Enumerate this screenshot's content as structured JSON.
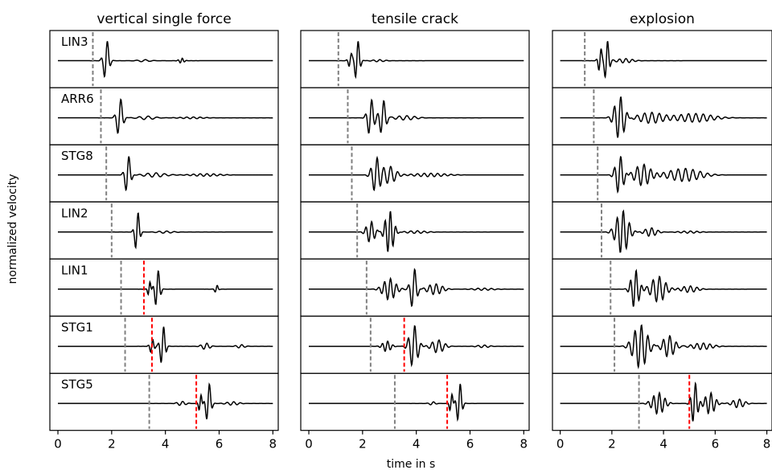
{
  "chart_data": {
    "type": "line",
    "ylabel": "normalized velocity",
    "xlabel": "time in s",
    "xlim": [
      -0.3,
      8.2
    ],
    "xticks": [
      0,
      2,
      4,
      6,
      8
    ],
    "colors": {
      "trace": "#000000",
      "onset_marker": "#808080",
      "secondary_marker": "#ff0000"
    },
    "stations": [
      "LIN3",
      "ARR6",
      "STG8",
      "LIN2",
      "LIN1",
      "STG1",
      "STG5"
    ],
    "columns": [
      {
        "title": "vertical single force",
        "traces": [
          {
            "station": "LIN3",
            "onset": 1.3,
            "secondary": null,
            "wavelets": [
              [
                1.8,
                1.0,
                0.13,
                4.0
              ],
              [
                3.2,
                0.05,
                0.3,
                3.0
              ],
              [
                4.6,
                0.12,
                0.12,
                6.0
              ]
            ]
          },
          {
            "station": "ARR6",
            "onset": 1.6,
            "secondary": null,
            "wavelets": [
              [
                2.3,
                0.95,
                0.14,
                3.8
              ],
              [
                3.3,
                0.08,
                0.4,
                3.0
              ],
              [
                5.0,
                0.04,
                0.6,
                4.0
              ]
            ]
          },
          {
            "station": "STG8",
            "onset": 1.8,
            "secondary": null,
            "wavelets": [
              [
                2.6,
                0.95,
                0.13,
                4.0
              ],
              [
                3.6,
                0.1,
                0.5,
                3.2
              ],
              [
                5.5,
                0.06,
                0.7,
                4.0
              ]
            ]
          },
          {
            "station": "LIN2",
            "onset": 2.0,
            "secondary": null,
            "wavelets": [
              [
                2.95,
                1.0,
                0.11,
                4.5
              ],
              [
                4.0,
                0.05,
                0.4,
                3.5
              ]
            ]
          },
          {
            "station": "LIN1",
            "onset": 2.35,
            "secondary": 3.2,
            "wavelets": [
              [
                3.4,
                0.4,
                0.07,
                5.5
              ],
              [
                3.7,
                0.95,
                0.12,
                4.5
              ],
              [
                5.9,
                0.2,
                0.08,
                5.0
              ]
            ]
          },
          {
            "station": "STG1",
            "onset": 2.5,
            "secondary": 3.5,
            "wavelets": [
              [
                3.5,
                0.35,
                0.1,
                5.5
              ],
              [
                3.9,
                1.0,
                0.12,
                4.5
              ],
              [
                5.5,
                0.15,
                0.2,
                4.0
              ],
              [
                6.8,
                0.08,
                0.2,
                4.0
              ]
            ]
          },
          {
            "station": "STG5",
            "onset": 3.4,
            "secondary": 5.15,
            "wavelets": [
              [
                4.6,
                0.1,
                0.2,
                4.0
              ],
              [
                5.3,
                0.45,
                0.08,
                5.5
              ],
              [
                5.6,
                1.0,
                0.12,
                4.2
              ],
              [
                6.5,
                0.08,
                0.3,
                4.0
              ]
            ]
          }
        ]
      },
      {
        "title": "tensile crack",
        "traces": [
          {
            "station": "LIN3",
            "onset": 1.1,
            "secondary": null,
            "wavelets": [
              [
                1.55,
                0.35,
                0.1,
                5.0
              ],
              [
                1.8,
                1.0,
                0.12,
                4.5
              ],
              [
                2.6,
                0.05,
                0.3,
                4.0
              ]
            ]
          },
          {
            "station": "ARR6",
            "onset": 1.45,
            "secondary": null,
            "wavelets": [
              [
                2.3,
                0.9,
                0.15,
                4.0
              ],
              [
                2.75,
                0.85,
                0.15,
                4.0
              ],
              [
                3.6,
                0.1,
                0.5,
                3.5
              ]
            ]
          },
          {
            "station": "STG8",
            "onset": 1.6,
            "secondary": null,
            "wavelets": [
              [
                2.5,
                0.8,
                0.2,
                4.0
              ],
              [
                3.0,
                0.4,
                0.3,
                3.8
              ],
              [
                4.5,
                0.08,
                0.8,
                4.0
              ]
            ]
          },
          {
            "station": "LIN2",
            "onset": 1.8,
            "secondary": null,
            "wavelets": [
              [
                2.3,
                0.5,
                0.2,
                4.5
              ],
              [
                3.0,
                1.0,
                0.2,
                5.0
              ],
              [
                4.0,
                0.06,
                0.5,
                4.0
              ]
            ]
          },
          {
            "station": "LIN1",
            "onset": 2.15,
            "secondary": null,
            "wavelets": [
              [
                3.0,
                0.5,
                0.3,
                4.5
              ],
              [
                3.9,
                1.0,
                0.15,
                4.0
              ],
              [
                4.7,
                0.25,
                0.35,
                4.2
              ],
              [
                6.5,
                0.05,
                0.5,
                4.0
              ]
            ]
          },
          {
            "station": "STG1",
            "onset": 2.3,
            "secondary": 3.55,
            "wavelets": [
              [
                2.9,
                0.25,
                0.2,
                5.0
              ],
              [
                3.9,
                1.0,
                0.2,
                4.0
              ],
              [
                4.8,
                0.3,
                0.3,
                4.0
              ],
              [
                6.5,
                0.06,
                0.3,
                4.0
              ]
            ]
          },
          {
            "station": "STG5",
            "onset": 3.2,
            "secondary": 5.15,
            "wavelets": [
              [
                4.6,
                0.08,
                0.15,
                4.0
              ],
              [
                5.3,
                0.5,
                0.08,
                5.0
              ],
              [
                5.6,
                1.0,
                0.12,
                4.5
              ]
            ]
          }
        ]
      },
      {
        "title": "explosion",
        "traces": [
          {
            "station": "LIN3",
            "onset": 0.95,
            "secondary": null,
            "wavelets": [
              [
                1.55,
                0.6,
                0.1,
                5.0
              ],
              [
                1.8,
                1.0,
                0.12,
                4.5
              ],
              [
                2.5,
                0.1,
                0.4,
                4.0
              ]
            ]
          },
          {
            "station": "ARR6",
            "onset": 1.3,
            "secondary": null,
            "wavelets": [
              [
                2.3,
                1.0,
                0.25,
                4.0
              ],
              [
                3.5,
                0.25,
                0.6,
                3.5
              ],
              [
                5.2,
                0.2,
                0.9,
                3.5
              ]
            ]
          },
          {
            "station": "STG8",
            "onset": 1.45,
            "secondary": null,
            "wavelets": [
              [
                2.3,
                0.9,
                0.2,
                4.0
              ],
              [
                3.2,
                0.5,
                0.4,
                3.8
              ],
              [
                4.8,
                0.3,
                0.8,
                3.5
              ]
            ]
          },
          {
            "station": "LIN2",
            "onset": 1.6,
            "secondary": null,
            "wavelets": [
              [
                2.4,
                1.0,
                0.3,
                4.2
              ],
              [
                3.5,
                0.2,
                0.3,
                4.0
              ],
              [
                5.0,
                0.05,
                0.5,
                4.0
              ]
            ]
          },
          {
            "station": "LIN1",
            "onset": 1.95,
            "secondary": null,
            "wavelets": [
              [
                2.9,
                0.9,
                0.2,
                4.5
              ],
              [
                3.8,
                0.6,
                0.35,
                4.0
              ],
              [
                5.0,
                0.15,
                0.4,
                4.0
              ]
            ]
          },
          {
            "station": "STG1",
            "onset": 2.1,
            "secondary": null,
            "wavelets": [
              [
                3.1,
                1.0,
                0.35,
                4.0
              ],
              [
                4.2,
                0.5,
                0.3,
                4.0
              ],
              [
                5.5,
                0.15,
                0.5,
                4.0
              ]
            ]
          },
          {
            "station": "STG5",
            "onset": 3.05,
            "secondary": 5.0,
            "wavelets": [
              [
                3.8,
                0.5,
                0.3,
                4.5
              ],
              [
                5.2,
                1.0,
                0.15,
                4.5
              ],
              [
                5.8,
                0.5,
                0.25,
                4.5
              ],
              [
                6.9,
                0.2,
                0.3,
                4.0
              ]
            ]
          }
        ]
      }
    ]
  }
}
